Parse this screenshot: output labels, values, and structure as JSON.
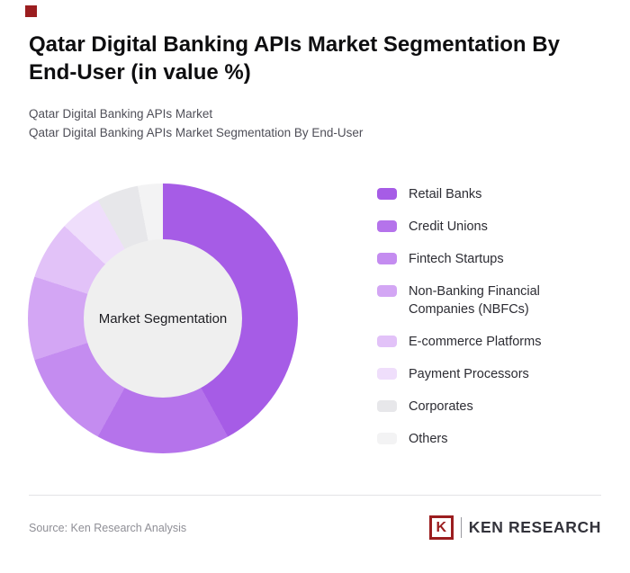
{
  "page": {
    "title": "Qatar Digital Banking APIs Market Segmentation By End-User (in value %)",
    "breadcrumb_line1": "Qatar Digital Banking APIs Market",
    "breadcrumb_line2": "Qatar Digital Banking APIs Market Segmentation By End-User",
    "source": "Source: Ken Research Analysis"
  },
  "logo": {
    "k": "K",
    "text": "KEN RESEARCH"
  },
  "colors": {
    "brand_red": "#9b1d1f",
    "donut_hole": "#efefef",
    "divider": "#e3e3e6"
  },
  "chart_data": {
    "type": "pie",
    "donut": true,
    "title": "Qatar Digital Banking APIs Market Segmentation By End-User (in value %)",
    "center_label": "Market Segmentation",
    "legend_position": "right",
    "start_angle_deg": 0,
    "direction": "clockwise",
    "values_estimated": true,
    "segments": [
      {
        "label": "Retail Banks",
        "value": 42,
        "color": "#a65ce6"
      },
      {
        "label": "Credit Unions",
        "value": 16,
        "color": "#b573eb"
      },
      {
        "label": "Fintech Startups",
        "value": 12,
        "color": "#c48cf0"
      },
      {
        "label": "Non-Banking Financial Companies (NBFCs)",
        "value": 10,
        "color": "#d3a6f4"
      },
      {
        "label": "E-commerce Platforms",
        "value": 7,
        "color": "#e2c2f8"
      },
      {
        "label": "Payment Processors",
        "value": 5,
        "color": "#efdefb"
      },
      {
        "label": "Corporates",
        "value": 5,
        "color": "#e7e7ea"
      },
      {
        "label": "Others",
        "value": 3,
        "color": "#f3f3f4"
      }
    ]
  }
}
